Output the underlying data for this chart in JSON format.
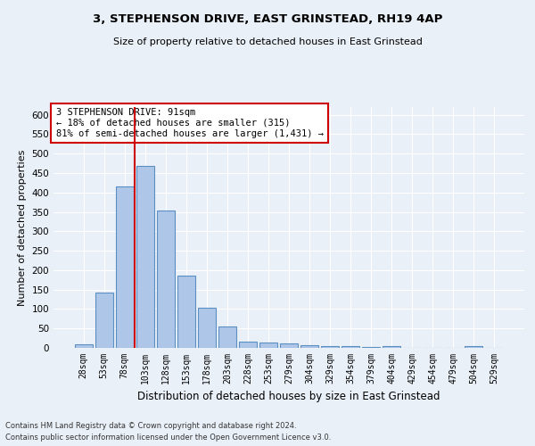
{
  "title": "3, STEPHENSON DRIVE, EAST GRINSTEAD, RH19 4AP",
  "subtitle": "Size of property relative to detached houses in East Grinstead",
  "xlabel": "Distribution of detached houses by size in East Grinstead",
  "ylabel": "Number of detached properties",
  "footnote1": "Contains HM Land Registry data © Crown copyright and database right 2024.",
  "footnote2": "Contains public sector information licensed under the Open Government Licence v3.0.",
  "bar_labels": [
    "28sqm",
    "53sqm",
    "78sqm",
    "103sqm",
    "128sqm",
    "153sqm",
    "178sqm",
    "203sqm",
    "228sqm",
    "253sqm",
    "279sqm",
    "304sqm",
    "329sqm",
    "354sqm",
    "379sqm",
    "404sqm",
    "429sqm",
    "454sqm",
    "479sqm",
    "504sqm",
    "529sqm"
  ],
  "bar_values": [
    10,
    143,
    415,
    468,
    354,
    185,
    103,
    54,
    16,
    14,
    11,
    6,
    5,
    5,
    2,
    5,
    0,
    0,
    0,
    5,
    0
  ],
  "bar_color": "#aec6e8",
  "bar_edgecolor": "#5a8fc2",
  "ylim": [
    0,
    620
  ],
  "yticks": [
    0,
    50,
    100,
    150,
    200,
    250,
    300,
    350,
    400,
    450,
    500,
    550,
    600
  ],
  "vline_color": "#cc0000",
  "annotation_text": "3 STEPHENSON DRIVE: 91sqm\n← 18% of detached houses are smaller (315)\n81% of semi-detached houses are larger (1,431) →",
  "annotation_box_color": "#ffffff",
  "annotation_box_edgecolor": "#cc0000",
  "bg_color": "#eaf0f8",
  "plot_bg_color": "#eaf0f8"
}
